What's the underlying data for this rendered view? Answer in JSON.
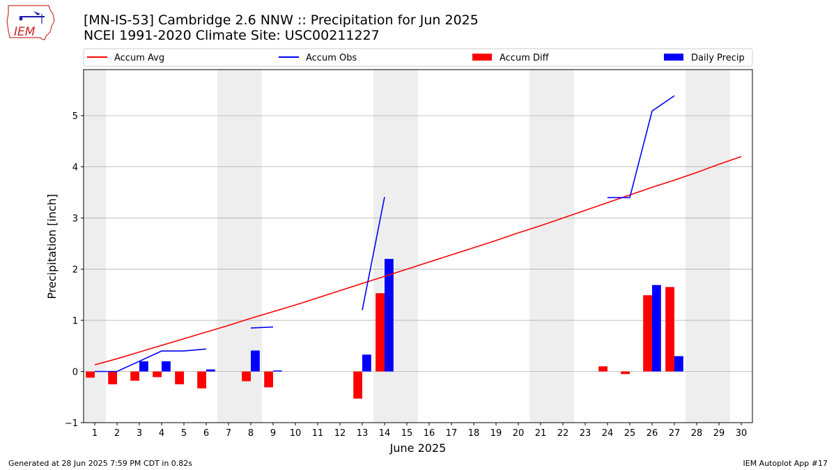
{
  "title_line1": "[MN-IS-53] Cambridge 2.6 NNW :: Precipitation for Jun 2025",
  "title_line2": "NCEI 1991-2020 Climate Site: USC00211227",
  "logo_text": "IEM",
  "footer_left": "Generated at 28 Jun 2025 7:59 PM CDT in 0.82s",
  "footer_right": "IEM Autoplot App #17",
  "colors": {
    "avg": "#ff0000",
    "obs": "#0000ff",
    "diff": "#ff0000",
    "daily": "#0000ff",
    "weekend": "#eeeeee",
    "grid": "#b0b0b0"
  },
  "legend": [
    {
      "label": "Accum Avg",
      "kind": "line",
      "color": "#ff0000"
    },
    {
      "label": "Accum Obs",
      "kind": "line",
      "color": "#0000ff"
    },
    {
      "label": "Accum Diff",
      "kind": "patch",
      "color": "#ff0000"
    },
    {
      "label": "Daily Precip",
      "kind": "patch",
      "color": "#0000ff"
    }
  ],
  "chart_data": {
    "type": "bar",
    "xlabel": "June 2025",
    "ylabel": "Precipitation [inch]",
    "xlim": [
      0.5,
      30.5
    ],
    "ylim": [
      -1.0,
      5.9
    ],
    "yticks": [
      -1,
      0,
      1,
      2,
      3,
      4,
      5
    ],
    "xticks": [
      1,
      2,
      3,
      4,
      5,
      6,
      7,
      8,
      9,
      10,
      11,
      12,
      13,
      14,
      15,
      16,
      17,
      18,
      19,
      20,
      21,
      22,
      23,
      24,
      25,
      26,
      27,
      28,
      29,
      30
    ],
    "grid": "horizontal",
    "legend_position": "top",
    "weekend_days": [
      1,
      7,
      8,
      14,
      15,
      21,
      22,
      28,
      29
    ],
    "accum_avg": [
      [
        1,
        0.13
      ],
      [
        2,
        0.25
      ],
      [
        3,
        0.38
      ],
      [
        4,
        0.51
      ],
      [
        5,
        0.64
      ],
      [
        6,
        0.77
      ],
      [
        7,
        0.9
      ],
      [
        8,
        1.04
      ],
      [
        9,
        1.17
      ],
      [
        10,
        1.3
      ],
      [
        11,
        1.44
      ],
      [
        12,
        1.58
      ],
      [
        13,
        1.72
      ],
      [
        14,
        1.86
      ],
      [
        15,
        2.0
      ],
      [
        16,
        2.14
      ],
      [
        17,
        2.28
      ],
      [
        18,
        2.42
      ],
      [
        19,
        2.56
      ],
      [
        20,
        2.71
      ],
      [
        21,
        2.85
      ],
      [
        22,
        3.0
      ],
      [
        23,
        3.15
      ],
      [
        24,
        3.3
      ],
      [
        25,
        3.45
      ],
      [
        26,
        3.6
      ],
      [
        27,
        3.74
      ],
      [
        28,
        3.89
      ],
      [
        29,
        4.05
      ],
      [
        30,
        4.2
      ]
    ],
    "accum_obs": [
      [
        [
          1,
          0.0
        ],
        [
          2,
          0.0
        ],
        [
          3,
          0.2
        ],
        [
          4,
          0.4
        ],
        [
          5,
          0.4
        ],
        [
          6,
          0.44
        ]
      ],
      [
        [
          8,
          0.85
        ],
        [
          9,
          0.87
        ]
      ],
      [
        [
          13,
          1.2
        ],
        [
          14,
          3.41
        ]
      ],
      [
        [
          24,
          3.4
        ],
        [
          25,
          3.4
        ],
        [
          26,
          5.09
        ],
        [
          27,
          5.39
        ]
      ]
    ],
    "accum_diff": [
      [
        1,
        -0.12
      ],
      [
        2,
        -0.25
      ],
      [
        3,
        -0.18
      ],
      [
        4,
        -0.11
      ],
      [
        5,
        -0.25
      ],
      [
        6,
        -0.33
      ],
      [
        8,
        -0.19
      ],
      [
        9,
        -0.31
      ],
      [
        13,
        -0.53
      ],
      [
        14,
        1.53
      ],
      [
        24,
        0.1
      ],
      [
        25,
        -0.05
      ],
      [
        26,
        1.49
      ],
      [
        27,
        1.65
      ]
    ],
    "daily_precip": [
      [
        1,
        0.0
      ],
      [
        2,
        0.0
      ],
      [
        3,
        0.2
      ],
      [
        4,
        0.2
      ],
      [
        5,
        0.0
      ],
      [
        6,
        0.04
      ],
      [
        8,
        0.41
      ],
      [
        9,
        0.02
      ],
      [
        13,
        0.33
      ],
      [
        14,
        2.2
      ],
      [
        24,
        0.0
      ],
      [
        25,
        0.0
      ],
      [
        26,
        1.69
      ],
      [
        27,
        0.3
      ]
    ]
  }
}
